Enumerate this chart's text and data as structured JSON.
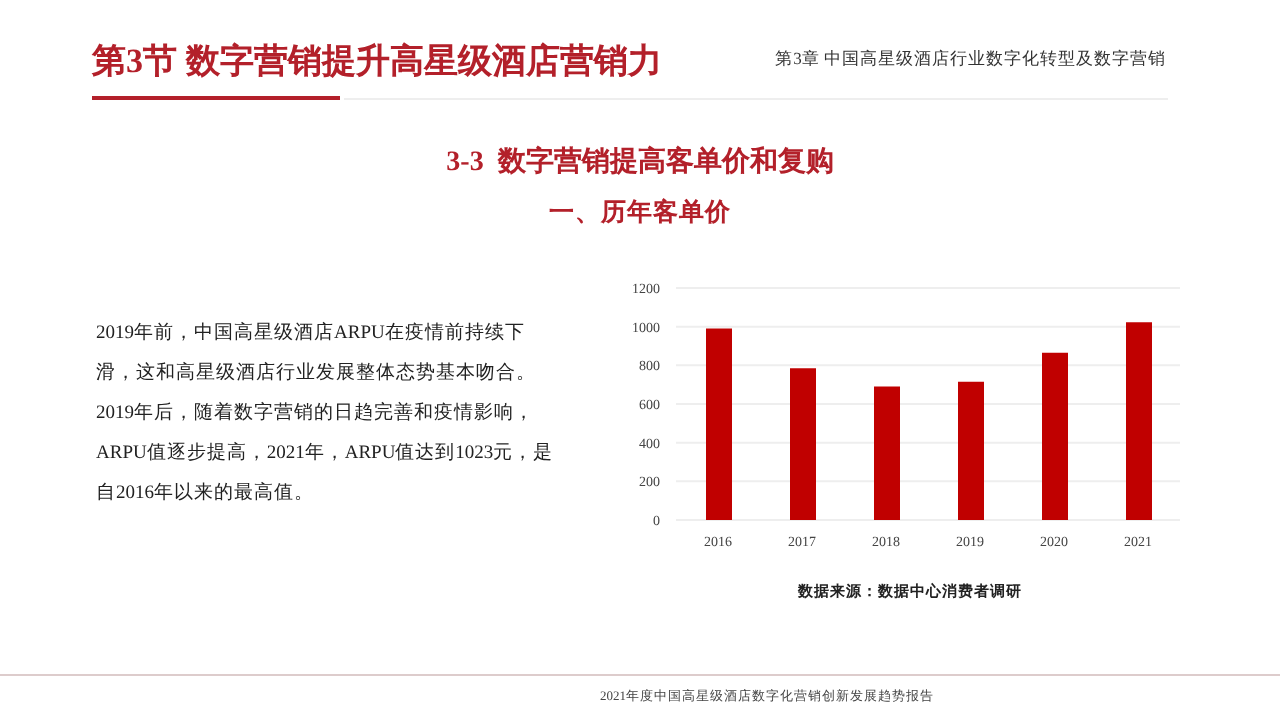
{
  "chart_data": {
    "type": "bar",
    "title": "3-3  数字营销提高客单价和复购",
    "subtitle": "一、历年客单价",
    "categories": [
      "2016",
      "2017",
      "2018",
      "2019",
      "2020",
      "2021"
    ],
    "values": [
      990,
      785,
      690,
      715,
      865,
      1023
    ],
    "color": "#c00000",
    "ylim": [
      0,
      1200
    ],
    "yticks": [
      0,
      200,
      400,
      600,
      800,
      1000,
      1200
    ],
    "grid": "y",
    "annotations": [
      "第3节 数字营销提升高星级酒店营销力",
      "第3章  中国高星级酒店行业数字化转型及数字营销",
      "2019年前，中国高星级酒店ARPU在疫情前持续下滑，这和高星级酒店行业发展整体态势基本吻合。2019年后，随着数字营销的日趋完善和疫情影响，ARPU值逐步提高，2021年，ARPU值达到1023元，是自2016年以来的最高值。",
      "数据来源：数据中心消费者调研",
      "2021年度中国高星级酒店数字化营销创新发展趋势报告"
    ]
  }
}
